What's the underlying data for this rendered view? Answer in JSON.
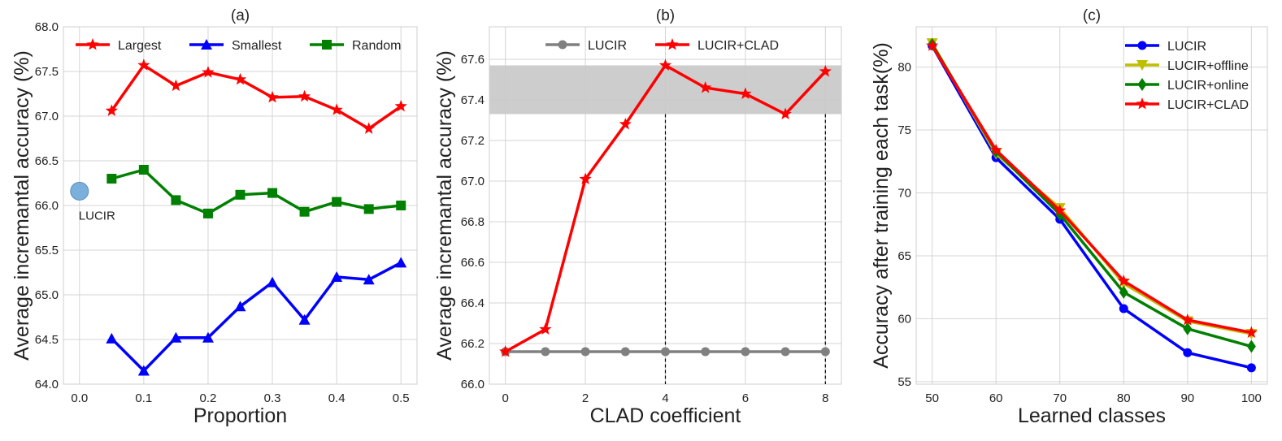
{
  "chart_data": [
    {
      "type": "line",
      "title": "(a)",
      "xlabel": "Proportion",
      "ylabel": "Average incremantal accuracy (%)",
      "xlim": [
        -0.025,
        0.525
      ],
      "ylim": [
        64.0,
        68.0
      ],
      "xticks": [
        "0.0",
        "0.1",
        "0.2",
        "0.3",
        "0.4",
        "0.5"
      ],
      "yticks": [
        "64.0",
        "64.5",
        "65.0",
        "65.5",
        "66.0",
        "66.5",
        "67.0",
        "67.5",
        "68.0"
      ],
      "x": [
        0.05,
        0.1,
        0.15,
        0.2,
        0.25,
        0.3,
        0.35,
        0.4,
        0.45,
        0.5
      ],
      "series": [
        {
          "name": "Largest",
          "color": "#ff0000",
          "marker": "star",
          "values": [
            67.06,
            67.57,
            67.34,
            67.49,
            67.41,
            67.21,
            67.22,
            67.07,
            66.86,
            67.11
          ]
        },
        {
          "name": "Smallest",
          "color": "#0000ff",
          "marker": "triangle",
          "values": [
            64.51,
            64.15,
            64.52,
            64.52,
            64.87,
            65.14,
            64.72,
            65.2,
            65.17,
            65.36
          ]
        },
        {
          "name": "Random",
          "color": "#008000",
          "marker": "square",
          "values": [
            66.3,
            66.4,
            66.06,
            65.91,
            66.12,
            66.14,
            65.93,
            66.04,
            65.96,
            66.0
          ]
        }
      ],
      "points": [
        {
          "label": "LUCIR",
          "x": 0.0,
          "y": 66.16,
          "color": "#7ab0db"
        }
      ],
      "legend": "top, 3 columns",
      "grid": true
    },
    {
      "type": "line",
      "title": "(b)",
      "xlabel": "CLAD coefficient",
      "ylabel": "Average incremantal accuracy (%)",
      "xlim": [
        -0.4,
        8.4
      ],
      "ylim": [
        66.0,
        67.76
      ],
      "xticks": [
        "0",
        "2",
        "4",
        "6",
        "8"
      ],
      "yticks": [
        "66.0",
        "66.2",
        "66.4",
        "66.6",
        "66.8",
        "67.0",
        "67.2",
        "67.4",
        "67.6"
      ],
      "x": [
        0,
        1,
        2,
        3,
        4,
        5,
        6,
        7,
        8
      ],
      "series": [
        {
          "name": "LUCIR",
          "color": "#808080",
          "marker": "circle",
          "values": [
            66.16,
            66.16,
            66.16,
            66.16,
            66.16,
            66.16,
            66.16,
            66.16,
            66.16
          ]
        },
        {
          "name": "LUCIR+CLAD",
          "color": "#ff0000",
          "marker": "star",
          "values": [
            66.16,
            66.27,
            67.01,
            67.28,
            67.57,
            67.46,
            67.43,
            67.33,
            67.54
          ]
        }
      ],
      "shaded_band": {
        "y_min": 67.33,
        "y_max": 67.57,
        "color": "#c8c8c8"
      },
      "vlines": [
        4,
        8
      ],
      "legend": "top, 2 columns",
      "grid": true
    },
    {
      "type": "line",
      "title": "(c)",
      "xlabel": "Learned classes",
      "ylabel": "Accuracy after training each task(%)",
      "xlim": [
        47.5,
        102.5
      ],
      "ylim": [
        54.8,
        83.2
      ],
      "xticks": [
        "50",
        "60",
        "70",
        "80",
        "90",
        "100"
      ],
      "yticks": [
        "55",
        "60",
        "65",
        "70",
        "75",
        "80"
      ],
      "x": [
        50,
        60,
        70,
        80,
        90,
        100
      ],
      "series": [
        {
          "name": "LUCIR",
          "color": "#0000ff",
          "marker": "circle",
          "values": [
            81.7,
            72.8,
            67.9,
            60.8,
            57.3,
            56.1
          ]
        },
        {
          "name": "LUCIR+offline",
          "color": "#bfbf00",
          "marker": "triangle-down",
          "values": [
            81.9,
            73.1,
            68.8,
            62.8,
            59.8,
            58.8
          ]
        },
        {
          "name": "LUCIR+online",
          "color": "#008000",
          "marker": "diamond",
          "values": [
            81.8,
            73.3,
            68.3,
            62.1,
            59.2,
            57.8
          ]
        },
        {
          "name": "LUCIR+CLAD",
          "color": "#ff0000",
          "marker": "star",
          "values": [
            81.7,
            73.4,
            68.6,
            63.0,
            59.9,
            58.9
          ]
        }
      ],
      "legend": "top-right",
      "grid": true
    }
  ]
}
